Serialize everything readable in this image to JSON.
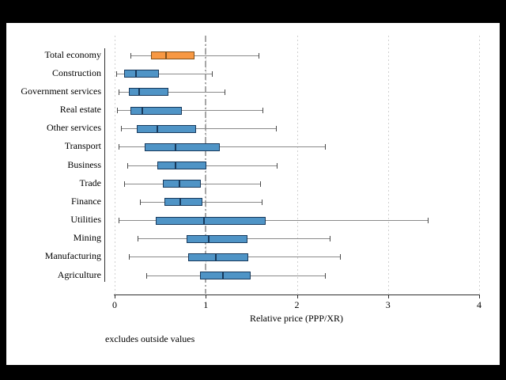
{
  "window": {
    "background": "#000000",
    "canvas_background": "#ffffff"
  },
  "chart_data": {
    "type": "box",
    "orientation": "horizontal",
    "title": "",
    "xlabel": "Relative price (PPP/XR)",
    "note": "excludes outside values",
    "xlim": [
      0,
      4
    ],
    "xticks": [
      0,
      1,
      2,
      3,
      4
    ],
    "xtick_labels": [
      "0",
      "1",
      "2",
      "3",
      "4"
    ],
    "grid": "vertical dotted gridlines at each x tick",
    "reference_line_x": 1,
    "legend": "none",
    "categories": [
      "Total economy",
      "Construction",
      "Government services",
      "Real estate",
      "Other services",
      "Transport",
      "Business",
      "Trade",
      "Finance",
      "Utilities",
      "Mining",
      "Manufacturing",
      "Agriculture"
    ],
    "series": [
      {
        "category": "Total economy",
        "whisker_low": 0.17,
        "q1": 0.4,
        "median": 0.56,
        "q3": 0.88,
        "whisker_high": 1.58,
        "highlight": true
      },
      {
        "category": "Construction",
        "whisker_low": 0.02,
        "q1": 0.1,
        "median": 0.23,
        "q3": 0.49,
        "whisker_high": 1.07,
        "highlight": false
      },
      {
        "category": "Government services",
        "whisker_low": 0.04,
        "q1": 0.16,
        "median": 0.27,
        "q3": 0.59,
        "whisker_high": 1.21,
        "highlight": false
      },
      {
        "category": "Real estate",
        "whisker_low": 0.03,
        "q1": 0.17,
        "median": 0.3,
        "q3": 0.74,
        "whisker_high": 1.62,
        "highlight": false
      },
      {
        "category": "Other services",
        "whisker_low": 0.07,
        "q1": 0.24,
        "median": 0.47,
        "q3": 0.89,
        "whisker_high": 1.77,
        "highlight": false
      },
      {
        "category": "Transport",
        "whisker_low": 0.04,
        "q1": 0.33,
        "median": 0.67,
        "q3": 1.15,
        "whisker_high": 2.31,
        "highlight": false
      },
      {
        "category": "Business",
        "whisker_low": 0.14,
        "q1": 0.47,
        "median": 0.67,
        "q3": 1.01,
        "whisker_high": 1.78,
        "highlight": false
      },
      {
        "category": "Trade",
        "whisker_low": 0.1,
        "q1": 0.53,
        "median": 0.71,
        "q3": 0.95,
        "whisker_high": 1.6,
        "highlight": false
      },
      {
        "category": "Finance",
        "whisker_low": 0.28,
        "q1": 0.55,
        "median": 0.72,
        "q3": 0.96,
        "whisker_high": 1.61,
        "highlight": false
      },
      {
        "category": "Utilities",
        "whisker_low": 0.04,
        "q1": 0.45,
        "median": 0.98,
        "q3": 1.66,
        "whisker_high": 3.44,
        "highlight": false
      },
      {
        "category": "Mining",
        "whisker_low": 0.25,
        "q1": 0.79,
        "median": 1.03,
        "q3": 1.46,
        "whisker_high": 2.36,
        "highlight": false
      },
      {
        "category": "Manufacturing",
        "whisker_low": 0.16,
        "q1": 0.81,
        "median": 1.11,
        "q3": 1.47,
        "whisker_high": 2.47,
        "highlight": false
      },
      {
        "category": "Agriculture",
        "whisker_low": 0.35,
        "q1": 0.94,
        "median": 1.19,
        "q3": 1.49,
        "whisker_high": 2.31,
        "highlight": false
      }
    ],
    "colors": {
      "box_fill": "#4f94c6",
      "box_border": "#17395c",
      "highlight_fill": "#f79843",
      "highlight_border": "#82511a",
      "whisker_line": "#8a8a8a",
      "whisker_cap": "#4a4a4a",
      "reference_line": "#a6a6a6",
      "gridline": "#d0d0d0",
      "axis": "#2e2e2e"
    }
  }
}
